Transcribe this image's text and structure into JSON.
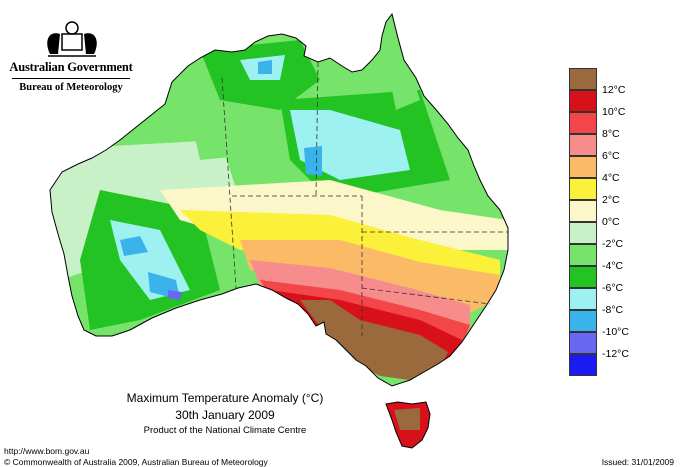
{
  "header": {
    "government": "Australian Government",
    "bureau": "Bureau of Meteorology"
  },
  "map": {
    "title": "Maximum Temperature Anomaly (°C)",
    "date": "30th January 2009",
    "product": "Product of the National Climate Centre"
  },
  "legend": {
    "unit": "°C",
    "classes": [
      {
        "label": "12°C",
        "color": "#9b6a3c"
      },
      {
        "label": "10°C",
        "color": "#d7101a"
      },
      {
        "label": "8°C",
        "color": "#f24648"
      },
      {
        "label": "6°C",
        "color": "#f78c8c"
      },
      {
        "label": "4°C",
        "color": "#fbbb66"
      },
      {
        "label": "2°C",
        "color": "#fbf03a"
      },
      {
        "label": "0°C",
        "color": "#fbf7c8"
      },
      {
        "label": "-2°C",
        "color": "#c9f1c7"
      },
      {
        "label": "-4°C",
        "color": "#76e36a"
      },
      {
        "label": "-6°C",
        "color": "#22c322"
      },
      {
        "label": "-8°C",
        "color": "#9df2f1"
      },
      {
        "label": "-10°C",
        "color": "#3ab3ea"
      },
      {
        "label": "-12°C",
        "color": "#6868f2"
      },
      {
        "label": "",
        "color": "#1a1af2"
      }
    ]
  },
  "footer": {
    "url": "http://www.bom.gov.au",
    "copyright": "© Commonwealth of Australia 2009, Australian Bureau of Meteorology",
    "issued": "Issued: 31/01/2009"
  }
}
